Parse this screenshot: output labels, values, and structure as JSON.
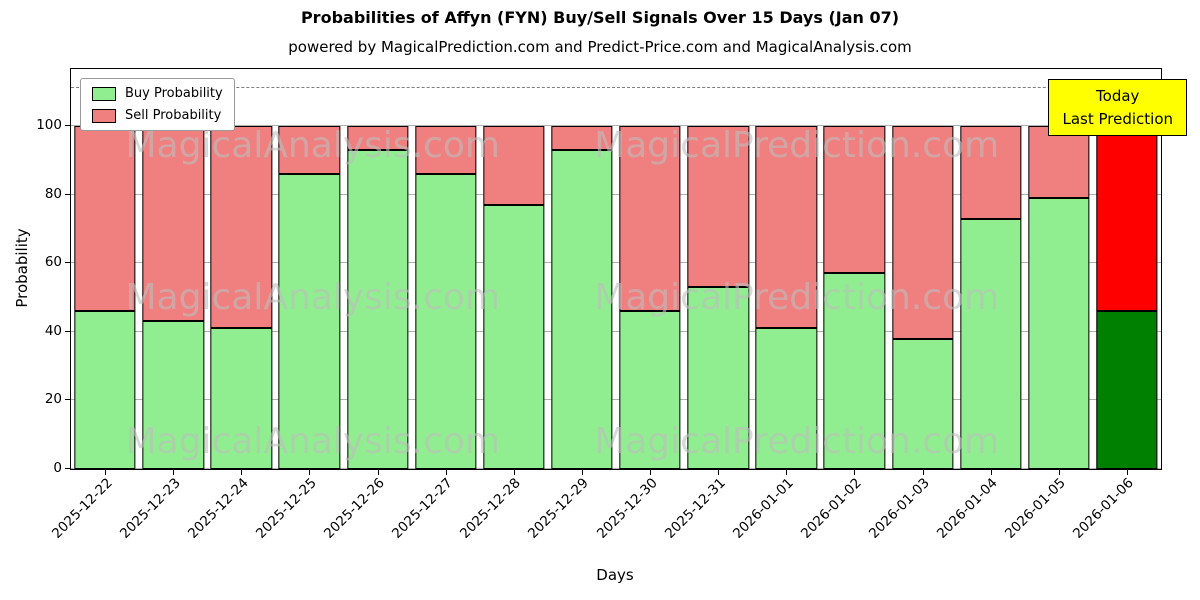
{
  "title": "Probabilities of Affyn (FYN) Buy/Sell Signals Over 15 Days (Jan 07)",
  "subtitle": "powered by MagicalPrediction.com and Predict-Price.com and MagicalAnalysis.com",
  "legend": {
    "buy_label": "Buy Probability",
    "sell_label": "Sell Probability"
  },
  "annotation": {
    "line1": "Today",
    "line2": "Last Prediction"
  },
  "axes": {
    "xlabel": "Days",
    "ylabel": "Probability",
    "yticks": [
      0,
      20,
      40,
      60,
      80,
      100
    ]
  },
  "watermarks": {
    "analysis": "MagicalAnalysis.com",
    "prediction": "MagicalPrediction.com"
  },
  "colors": {
    "buy": "#90EE90",
    "sell": "#F08080",
    "buy_today": "#008000",
    "sell_today": "#FF0000",
    "grid": "#b0b0b0",
    "dashed": "#7f7f7f",
    "annotation_bg": "#FFFF00"
  },
  "chart_data": {
    "type": "bar",
    "stacked": true,
    "title": "Probabilities of Affyn (FYN) Buy/Sell Signals Over 15 Days (Jan 07)",
    "xlabel": "Days",
    "ylabel": "Probability",
    "ylim": [
      0,
      116.6
    ],
    "dashed_line_y": 111,
    "grid": true,
    "legend_position": "upper left",
    "categories": [
      "2025-12-22",
      "2025-12-23",
      "2025-12-24",
      "2025-12-25",
      "2025-12-26",
      "2025-12-27",
      "2025-12-28",
      "2025-12-29",
      "2025-12-30",
      "2025-12-31",
      "2026-01-01",
      "2026-01-02",
      "2026-01-03",
      "2026-01-04",
      "2026-01-05",
      "2026-01-06"
    ],
    "series": [
      {
        "name": "Buy Probability",
        "values": [
          46,
          43,
          41,
          86,
          93,
          86,
          77,
          93,
          46,
          53,
          41,
          57,
          38,
          73,
          79,
          46
        ]
      },
      {
        "name": "Sell Probability",
        "values": [
          54,
          57,
          59,
          14,
          7,
          14,
          23,
          7,
          54,
          47,
          59,
          43,
          62,
          27,
          21,
          54
        ]
      }
    ],
    "today_index": 15
  }
}
